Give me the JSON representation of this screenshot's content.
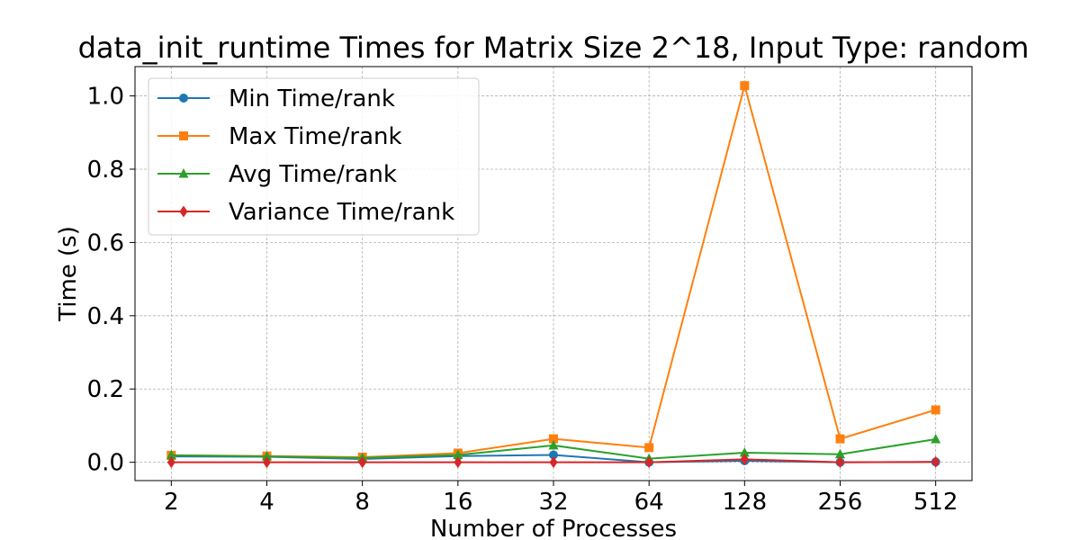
{
  "chart_data": {
    "type": "line",
    "title": "data_init_runtime Times for Matrix Size 2^18, Input Type: random",
    "xlabel": "Number of Processes",
    "ylabel": "Time (s)",
    "categories": [
      "2",
      "4",
      "8",
      "16",
      "32",
      "64",
      "128",
      "256",
      "512"
    ],
    "ylim": [
      -0.05,
      1.08
    ],
    "yticks": [
      0.0,
      0.2,
      0.4,
      0.6,
      0.8,
      1.0
    ],
    "ytick_labels": [
      "0.0",
      "0.2",
      "0.4",
      "0.6",
      "0.8",
      "1.0"
    ],
    "grid": true,
    "legend_position": "top-left",
    "series": [
      {
        "name": "Min Time/rank",
        "color": "#1f77b4",
        "marker": "circle",
        "values": [
          0.016,
          0.015,
          0.009,
          0.017,
          0.02,
          0.0,
          0.004,
          0.0,
          0.001
        ]
      },
      {
        "name": "Max Time/rank",
        "color": "#ff7f0e",
        "marker": "square",
        "values": [
          0.019,
          0.017,
          0.014,
          0.025,
          0.064,
          0.04,
          1.028,
          0.064,
          0.143
        ]
      },
      {
        "name": "Avg Time/rank",
        "color": "#2ca02c",
        "marker": "triangle",
        "values": [
          0.019,
          0.016,
          0.012,
          0.02,
          0.046,
          0.01,
          0.026,
          0.022,
          0.063
        ]
      },
      {
        "name": "Variance Time/rank",
        "color": "#d62728",
        "marker": "diamond",
        "values": [
          0.0,
          0.0,
          0.0,
          0.0,
          0.0,
          0.0,
          0.008,
          0.0,
          0.001
        ]
      }
    ]
  }
}
